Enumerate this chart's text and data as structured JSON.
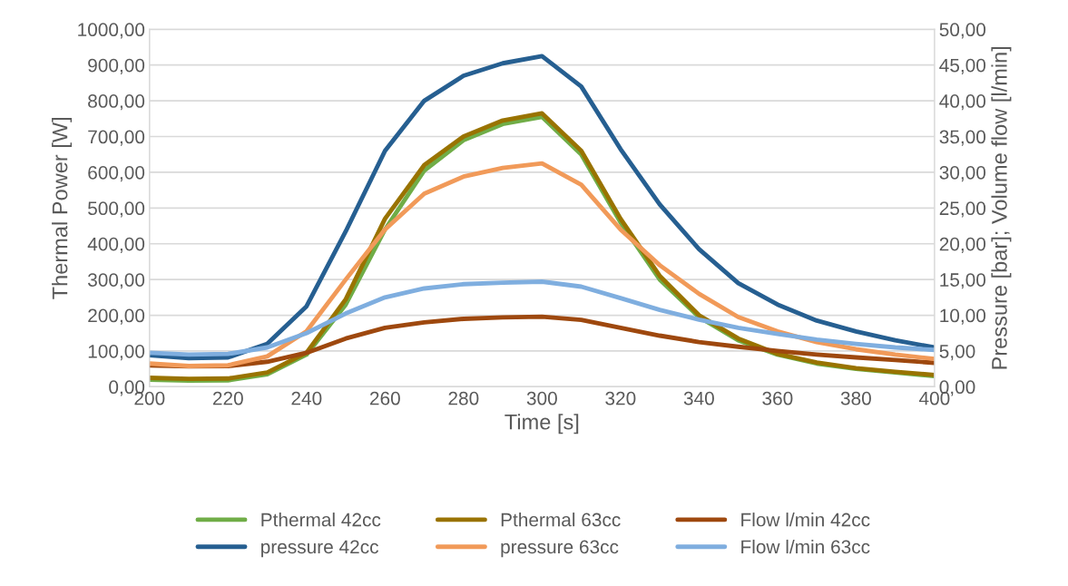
{
  "chart_data": {
    "type": "line",
    "xlabel": "Time [s]",
    "ylabel": "Thermal Power [W]",
    "y2label": "Pressure [bar]; Volume flow [l/min]",
    "x": [
      200,
      210,
      220,
      230,
      240,
      250,
      260,
      270,
      280,
      290,
      300,
      310,
      320,
      330,
      340,
      350,
      360,
      370,
      380,
      390,
      400
    ],
    "xlim": [
      200,
      400
    ],
    "xticks": [
      200,
      220,
      240,
      260,
      280,
      300,
      320,
      340,
      360,
      380,
      400
    ],
    "ylim": [
      0,
      1000
    ],
    "yticks": [
      {
        "value": 0,
        "label": "0,00"
      },
      {
        "value": 100,
        "label": "100,00"
      },
      {
        "value": 200,
        "label": "200,00"
      },
      {
        "value": 300,
        "label": "300,00"
      },
      {
        "value": 400,
        "label": "400,00"
      },
      {
        "value": 500,
        "label": "500,00"
      },
      {
        "value": 600,
        "label": "600,00"
      },
      {
        "value": 700,
        "label": "700,00"
      },
      {
        "value": 800,
        "label": "800,00"
      },
      {
        "value": 900,
        "label": "900,00"
      },
      {
        "value": 1000,
        "label": "1000,00"
      }
    ],
    "y2lim": [
      0,
      50
    ],
    "y2ticks": [
      {
        "value": 0,
        "label": "0,00"
      },
      {
        "value": 5,
        "label": "5,00"
      },
      {
        "value": 10,
        "label": "10,00"
      },
      {
        "value": 15,
        "label": "15,00"
      },
      {
        "value": 20,
        "label": "20,00"
      },
      {
        "value": 25,
        "label": "25,00"
      },
      {
        "value": 30,
        "label": "30,00"
      },
      {
        "value": 35,
        "label": "35,00"
      },
      {
        "value": 40,
        "label": "40,00"
      },
      {
        "value": 45,
        "label": "45,00"
      },
      {
        "value": 50,
        "label": "50,00"
      }
    ],
    "grid": "y",
    "legend": "bottom",
    "marker": "none",
    "line_style": "solid",
    "series": [
      {
        "name": "Pthermal 42cc",
        "color": "#70ad47",
        "values": [
          20,
          17,
          18,
          35,
          90,
          230,
          440,
          605,
          690,
          735,
          755,
          650,
          460,
          300,
          195,
          130,
          90,
          65,
          50,
          40,
          30
        ]
      },
      {
        "name": "Pthermal 63cc",
        "color": "#997300",
        "values": [
          25,
          22,
          23,
          40,
          95,
          245,
          470,
          620,
          700,
          745,
          765,
          660,
          470,
          310,
          200,
          135,
          92,
          68,
          52,
          42,
          33
        ]
      },
      {
        "name": "Flow l/min 42cc",
        "color": "#9e480e",
        "axis": "y2",
        "values": [
          3.0,
          2.85,
          2.9,
          3.5,
          4.75,
          6.75,
          8.25,
          9.0,
          9.5,
          9.7,
          9.8,
          9.35,
          8.25,
          7.15,
          6.25,
          5.6,
          5.0,
          4.5,
          4.1,
          3.75,
          3.35
        ]
      },
      {
        "name": "pressure 42cc",
        "color": "#265f91",
        "axis": "y2",
        "values": [
          4.4,
          4.0,
          4.1,
          6.0,
          11.25,
          21.75,
          33.0,
          40.0,
          43.5,
          45.25,
          46.25,
          42.0,
          33.25,
          25.5,
          19.25,
          14.5,
          11.5,
          9.25,
          7.75,
          6.5,
          5.5
        ]
      },
      {
        "name": "pressure 63cc",
        "color": "#f19a59",
        "axis": "y2",
        "values": [
          3.25,
          2.9,
          3.0,
          4.25,
          7.75,
          15.0,
          22.0,
          27.0,
          29.4,
          30.6,
          31.25,
          28.25,
          22.0,
          17.0,
          13.0,
          9.75,
          7.75,
          6.25,
          5.25,
          4.5,
          3.9
        ]
      },
      {
        "name": "Flow l/min 63cc",
        "color": "#7faedf",
        "axis": "y2",
        "values": [
          4.75,
          4.5,
          4.6,
          5.5,
          7.5,
          10.25,
          12.5,
          13.75,
          14.35,
          14.55,
          14.7,
          14.0,
          12.4,
          10.75,
          9.4,
          8.25,
          7.4,
          6.6,
          6.0,
          5.5,
          5.15
        ]
      }
    ]
  }
}
